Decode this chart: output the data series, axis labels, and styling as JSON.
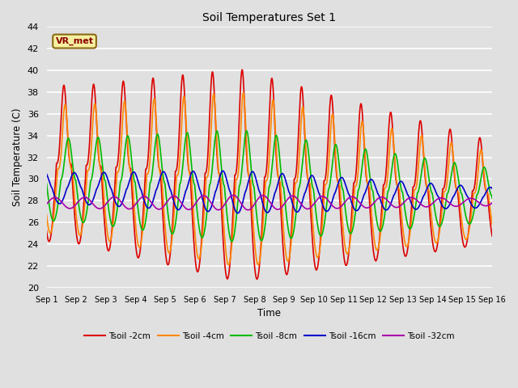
{
  "title": "Soil Temperatures Set 1",
  "xlabel": "Time",
  "ylabel": "Soil Temperature (C)",
  "xlim": [
    0,
    15
  ],
  "ylim": [
    20,
    44
  ],
  "yticks": [
    20,
    22,
    24,
    26,
    28,
    30,
    32,
    34,
    36,
    38,
    40,
    42,
    44
  ],
  "xtick_labels": [
    "Sep 1",
    "Sep 2",
    "Sep 3",
    "Sep 4",
    "Sep 5",
    "Sep 6",
    "Sep 7",
    "Sep 8",
    "Sep 9",
    "Sep 10",
    "Sep 11",
    "Sep 12",
    "Sep 13",
    "Sep 14",
    "Sep 15",
    "Sep 16"
  ],
  "annotation": "VR_met",
  "bg_color": "#e0e0e0",
  "plot_bg_color": "#e0e0e0",
  "grid_color": "#ffffff",
  "series_colors": {
    "Tsoil -2cm": "#dd0000",
    "Tsoil -4cm": "#ff8800",
    "Tsoil -8cm": "#00bb00",
    "Tsoil -16cm": "#0000cc",
    "Tsoil -32cm": "#aa00aa"
  },
  "lw": 1.2,
  "figsize": [
    6.4,
    4.8
  ],
  "dpi": 100
}
